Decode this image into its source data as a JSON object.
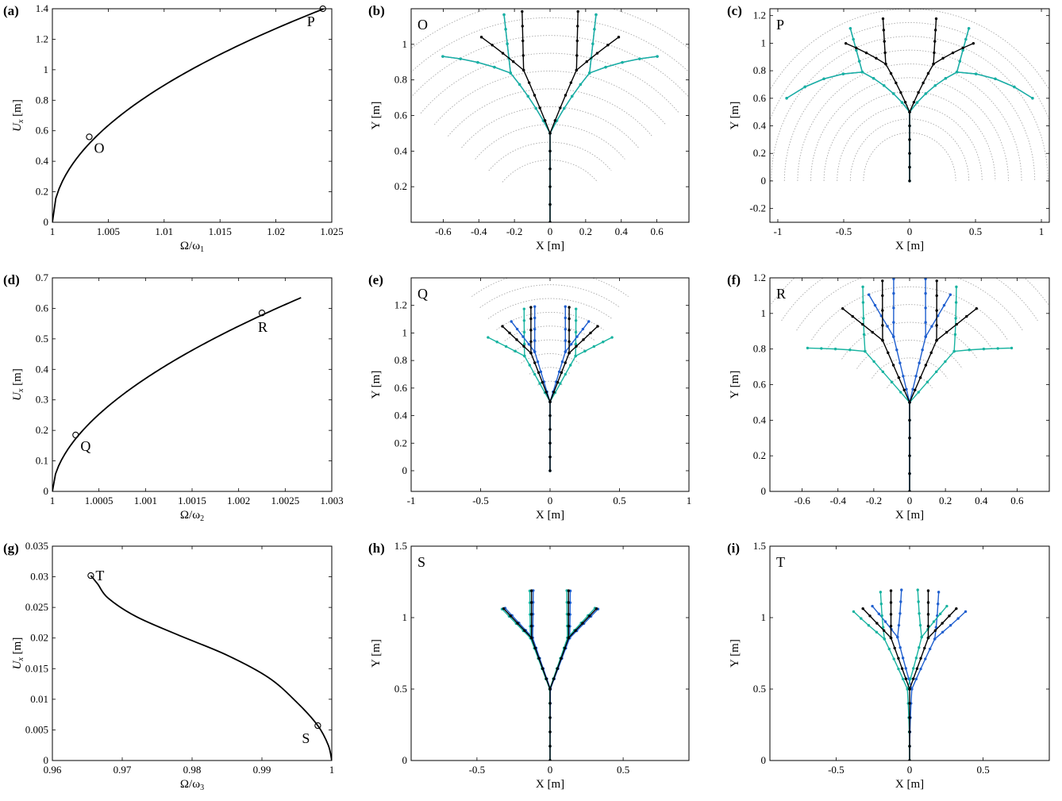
{
  "chart_data": [
    {
      "id": "a",
      "type": "line",
      "panel_label": "(a)",
      "xlabel": "Ω/ω",
      "xlabel_sub": "1",
      "ylabel": "U",
      "ylabel_sub": "x",
      "ylabel_unit": " [m]",
      "xlim": [
        1,
        1.025
      ],
      "ylim": [
        0,
        1.4
      ],
      "xticks": [
        1,
        1.005,
        1.01,
        1.015,
        1.02,
        1.025
      ],
      "xtick_labels": [
        "1",
        "1.005",
        "1.01",
        "1.015",
        "1.02",
        "1.025"
      ],
      "yticks": [
        0,
        0.2,
        0.4,
        0.6,
        0.8,
        1,
        1.2,
        1.4
      ],
      "ytick_labels": [
        "0",
        "0.2",
        "0.4",
        "0.6",
        "0.8",
        "1",
        "1.2",
        "1.4"
      ],
      "series": [
        {
          "curve": "backbone",
          "x0": 1,
          "x1": 1.0243,
          "y1": 1.4,
          "exponent": 0.5
        }
      ],
      "markers": [
        {
          "label": "O",
          "x": 1.0033,
          "y": 0.56,
          "label_side": "below-right"
        },
        {
          "label": "P",
          "x": 1.0242,
          "y": 1.4,
          "label_side": "below-left"
        }
      ]
    },
    {
      "id": "b",
      "type": "scatter",
      "panel_label": "(b)",
      "corner_label": "O",
      "xlabel": "X [m]",
      "ylabel": "Y [m]",
      "xlim": [
        -0.78,
        0.78
      ],
      "ylim": [
        0,
        1.2
      ],
      "xticks": [
        -0.6,
        -0.4,
        -0.2,
        0,
        0.2,
        0.4,
        0.6
      ],
      "xtick_labels": [
        "-0.6",
        "-0.4",
        "-0.2",
        "0",
        "0.2",
        "0.4",
        "0.6"
      ],
      "yticks": [
        0.2,
        0.4,
        0.6,
        0.8,
        1
      ],
      "ytick_labels": [
        "0.2",
        "0.4",
        "0.6",
        "0.8",
        "1"
      ],
      "tree": {
        "mode": "sym",
        "spread": 0.4
      }
    },
    {
      "id": "c",
      "type": "scatter",
      "panel_label": "(c)",
      "corner_label": "P",
      "xlabel": "X [m]",
      "ylabel": "Y [m]",
      "xlim": [
        -1.06,
        1.06
      ],
      "ylim": [
        -0.3,
        1.25
      ],
      "xticks": [
        -1,
        -0.5,
        0,
        0.5,
        1
      ],
      "xtick_labels": [
        "-1",
        "-0.5",
        "0",
        "0.5",
        "1"
      ],
      "yticks": [
        -0.2,
        0,
        0.2,
        0.4,
        0.6,
        0.8,
        1,
        1.2
      ],
      "ytick_labels": [
        "-0.2",
        "0",
        "0.2",
        "0.4",
        "0.6",
        "0.8",
        "1",
        "1.2"
      ],
      "tree": {
        "mode": "sym",
        "spread": 1.0
      }
    },
    {
      "id": "d",
      "type": "line",
      "panel_label": "(d)",
      "xlabel": "Ω/ω",
      "xlabel_sub": "2",
      "ylabel": "U",
      "ylabel_sub": "x",
      "ylabel_unit": " [m]",
      "xlim": [
        1,
        1.003
      ],
      "ylim": [
        0,
        0.7
      ],
      "xticks": [
        1,
        1.0005,
        1.001,
        1.0015,
        1.002,
        1.0025,
        1.003
      ],
      "xtick_labels": [
        "1",
        "1.0005",
        "1.001",
        "1.0015",
        "1.002",
        "1.0025",
        "1.003"
      ],
      "yticks": [
        0,
        0.1,
        0.2,
        0.3,
        0.4,
        0.5,
        0.6,
        0.7
      ],
      "ytick_labels": [
        "0",
        "0.1",
        "0.2",
        "0.3",
        "0.4",
        "0.5",
        "0.6",
        "0.7"
      ],
      "series": [
        {
          "curve": "backbone",
          "x0": 1,
          "x1": 1.00267,
          "y1": 0.635,
          "exponent": 0.55
        }
      ],
      "markers": [
        {
          "label": "Q",
          "x": 1.00025,
          "y": 0.185,
          "label_side": "below-right"
        },
        {
          "label": "R",
          "x": 1.00225,
          "y": 0.585,
          "label_side": "below"
        }
      ]
    },
    {
      "id": "e",
      "type": "scatter",
      "panel_label": "(e)",
      "corner_label": "Q",
      "xlabel": "X [m]",
      "ylabel": "Y [m]",
      "xlim": [
        -1,
        1
      ],
      "ylim": [
        -0.15,
        1.4
      ],
      "xticks": [
        -1,
        -0.5,
        0,
        0.5,
        1
      ],
      "xtick_labels": [
        "-1",
        "-0.5",
        "0",
        "0.5",
        "1"
      ],
      "yticks": [
        0,
        0.2,
        0.4,
        0.6,
        0.8,
        1,
        1.2
      ],
      "ytick_labels": [
        "0",
        "0.2",
        "0.4",
        "0.6",
        "0.8",
        "1",
        "1.2"
      ],
      "tree": {
        "mode": "asym",
        "spread": 0.22
      }
    },
    {
      "id": "f",
      "type": "scatter",
      "panel_label": "(f)",
      "corner_label": "R",
      "xlabel": "X [m]",
      "ylabel": "Y [m]",
      "xlim": [
        -0.78,
        0.78
      ],
      "ylim": [
        0,
        1.2
      ],
      "xticks": [
        -0.6,
        -0.4,
        -0.2,
        0,
        0.2,
        0.4,
        0.6
      ],
      "xtick_labels": [
        "-0.6",
        "-0.4",
        "-0.2",
        "0",
        "0.2",
        "0.4",
        "0.6"
      ],
      "yticks": [
        0,
        0.2,
        0.4,
        0.6,
        0.8,
        1,
        1.2
      ],
      "ytick_labels": [
        "0",
        "0.2",
        "0.4",
        "0.6",
        "0.8",
        "1",
        "1.2"
      ],
      "tree": {
        "mode": "asym",
        "spread": 0.5
      }
    },
    {
      "id": "g",
      "type": "line",
      "panel_label": "(g)",
      "xlabel": "Ω/ω",
      "xlabel_sub": "3",
      "ylabel": "U",
      "ylabel_sub": "x",
      "ylabel_unit": " [m]",
      "xlim": [
        0.96,
        1
      ],
      "ylim": [
        0,
        0.035
      ],
      "xticks": [
        0.96,
        0.97,
        0.98,
        0.99,
        1
      ],
      "xtick_labels": [
        "0.96",
        "0.97",
        "0.98",
        "0.99",
        "1"
      ],
      "yticks": [
        0,
        0.005,
        0.01,
        0.015,
        0.02,
        0.025,
        0.03,
        0.035
      ],
      "ytick_labels": [
        "0",
        "0.005",
        "0.01",
        "0.015",
        "0.02",
        "0.025",
        "0.03",
        "0.035"
      ],
      "series": [
        {
          "curve": "points",
          "x": [
            0.9655,
            0.9665,
            0.968,
            0.972,
            0.978,
            0.985,
            0.991,
            0.995,
            0.998,
            0.9995,
            1.0
          ],
          "y": [
            0.0302,
            0.0288,
            0.0265,
            0.0235,
            0.0205,
            0.0172,
            0.0135,
            0.0095,
            0.0057,
            0.0025,
            0.0
          ]
        }
      ],
      "markers": [
        {
          "label": "T",
          "x": 0.9655,
          "y": 0.0302,
          "label_side": "right"
        },
        {
          "label": "S",
          "x": 0.998,
          "y": 0.0057,
          "label_side": "below-left"
        }
      ]
    },
    {
      "id": "h",
      "type": "scatter",
      "panel_label": "(h)",
      "corner_label": "S",
      "xlabel": "X [m]",
      "ylabel": "Y [m]",
      "xlim": [
        -0.95,
        0.95
      ],
      "ylim": [
        0,
        1.5
      ],
      "xticks": [
        -0.5,
        0,
        0.5
      ],
      "xtick_labels": [
        "-0.5",
        "0",
        "0.5"
      ],
      "yticks": [
        0,
        0.5,
        1,
        1.5
      ],
      "ytick_labels": [
        "0",
        "0.5",
        "1",
        "1.5"
      ],
      "tree": {
        "mode": "static",
        "spread": 0.01
      }
    },
    {
      "id": "i",
      "type": "scatter",
      "panel_label": "(i)",
      "corner_label": "T",
      "xlabel": "X [m]",
      "ylabel": "Y [m]",
      "xlim": [
        -0.95,
        0.95
      ],
      "ylim": [
        0,
        1.5
      ],
      "xticks": [
        -0.5,
        0,
        0.5
      ],
      "xtick_labels": [
        "-0.5",
        "0",
        "0.5"
      ],
      "yticks": [
        0,
        0.5,
        1,
        1.5
      ],
      "ytick_labels": [
        "0",
        "0.5",
        "1",
        "1.5"
      ],
      "tree": {
        "mode": "static",
        "spread": 0.06
      }
    }
  ],
  "colors": {
    "black": "#000000",
    "blue": "#1f5fcf",
    "teal": "#17b3a0",
    "arc": "#a8a8a8"
  }
}
